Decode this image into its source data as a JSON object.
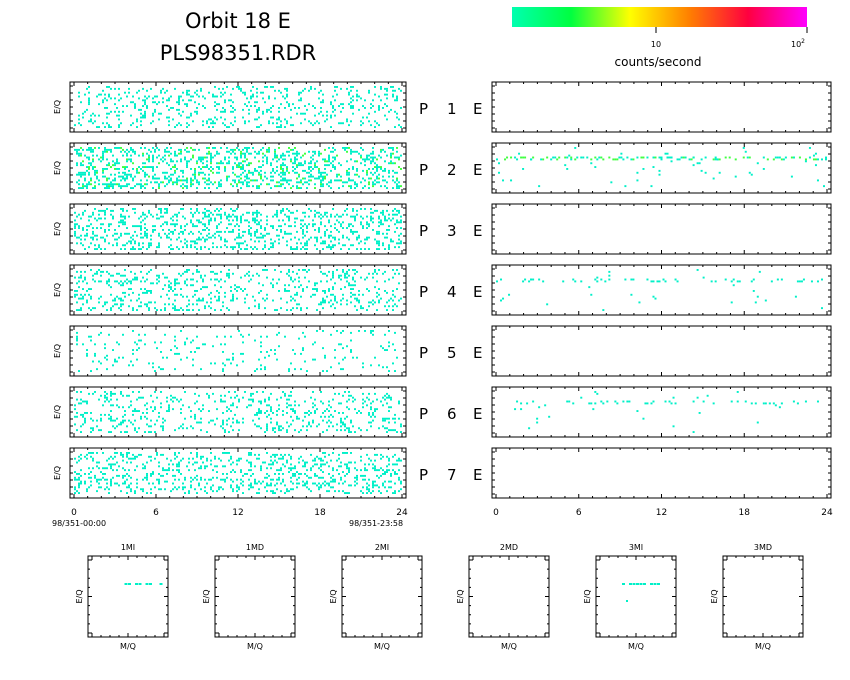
{
  "title": {
    "line1": "Orbit 18 E",
    "line2": "PLS98351.RDR"
  },
  "colorbar": {
    "label": "counts/second",
    "tick_10": "10",
    "tick_100_base": "10",
    "tick_100_exp": "2",
    "gradient_colors": [
      "#00ffb0",
      "#00ff40",
      "#ffff00",
      "#ff8000",
      "#ff0040",
      "#ff00ff"
    ]
  },
  "colors": {
    "low": "#00f0c8",
    "mid": "#40ff40",
    "frame": "#000000"
  },
  "axis": {
    "ylabel": "E/Q",
    "xticks": [
      "0",
      "6",
      "12",
      "18",
      "24"
    ],
    "start_label": "98/351-00:00",
    "end_label": "98/351-23:58"
  },
  "chart_data": [
    {
      "type": "heatmap",
      "description_panels": "left column: MI detectors P1..P7; right column: E panels P1..P7",
      "xlim": [
        0,
        24
      ],
      "x_unit": "hours",
      "ylabel": "E/Q",
      "rows": [
        {
          "label": "P 1 E",
          "left_density": 0.28,
          "right_density": 0.0
        },
        {
          "label": "P 2 E",
          "left_density": 0.55,
          "right_density": 0.08
        },
        {
          "label": "P 3 E",
          "left_density": 0.45,
          "right_density": 0.0
        },
        {
          "label": "P 4 E",
          "left_density": 0.32,
          "right_density": 0.04
        },
        {
          "label": "P 5 E",
          "left_density": 0.12,
          "right_density": 0.0
        },
        {
          "label": "P 6 E",
          "left_density": 0.3,
          "right_density": 0.03
        },
        {
          "label": "P 7 E",
          "left_density": 0.38,
          "right_density": 0.0
        }
      ]
    },
    {
      "type": "heatmap",
      "xlabel": "M/Q",
      "ylabel": "E/Q",
      "panels": [
        "1MI",
        "1MD",
        "2MI",
        "2MD",
        "3MI",
        "3MD"
      ]
    }
  ]
}
